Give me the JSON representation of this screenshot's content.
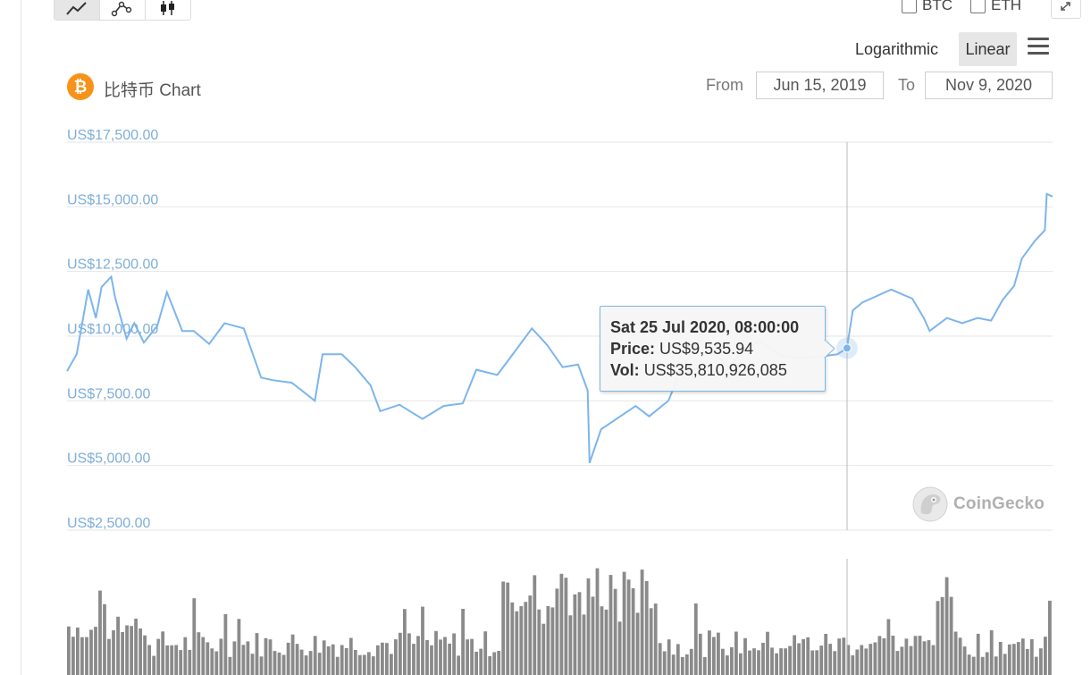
{
  "toolbar": {
    "chart_types": [
      {
        "name": "line",
        "icon": "line-chart-icon",
        "active": true
      },
      {
        "name": "ohlc-line",
        "icon": "connected-points-icon",
        "active": false
      },
      {
        "name": "candlestick",
        "icon": "candlestick-icon",
        "active": false
      }
    ],
    "compare": [
      {
        "label": "BTC",
        "checked": false
      },
      {
        "label": "ETH",
        "checked": false
      }
    ],
    "scale_options": [
      "Logarithmic",
      "Linear"
    ],
    "active_scale": "Linear"
  },
  "header": {
    "coin_symbol": "₿",
    "title": "比特币 Chart",
    "from_label": "From",
    "from_value": "Jun 15, 2019",
    "to_label": "To",
    "to_value": "Nov 9, 2020"
  },
  "tooltip": {
    "date": "Sat 25 Jul 2020, 08:00:00",
    "price_label": "Price:",
    "price_value": "US$9,535.94",
    "vol_label": "Vol:",
    "vol_value": "US$35,810,926,085"
  },
  "watermark": "CoinGecko",
  "colors": {
    "line": "#7cb5ec",
    "axis_text": "#7eaed9",
    "volume": "#8a8a8a",
    "bitcoin": "#f7931a"
  },
  "chart_data": {
    "type": "line",
    "title": "比特币 Chart",
    "x_range": [
      "2019-06-15",
      "2020-11-09"
    ],
    "y_ticks": [
      "US$2,500.00",
      "US$5,000.00",
      "US$7,500.00",
      "US$10,000.00",
      "US$12,500.00",
      "US$15,000.00",
      "US$17,500.00"
    ],
    "y_tick_values": [
      2500,
      5000,
      7500,
      10000,
      12500,
      15000,
      17500
    ],
    "ylim": [
      2500,
      17500
    ],
    "grid": true,
    "series": [
      {
        "kind": "price",
        "x": [
          "2019-06-15",
          "2019-06-20",
          "2019-06-26",
          "2019-06-30",
          "2019-07-03",
          "2019-07-08",
          "2019-07-10",
          "2019-07-16",
          "2019-07-20",
          "2019-07-25",
          "2019-08-01",
          "2019-08-06",
          "2019-08-14",
          "2019-08-20",
          "2019-08-28",
          "2019-09-05",
          "2019-09-15",
          "2019-09-24",
          "2019-09-30",
          "2019-10-10",
          "2019-10-22",
          "2019-10-26",
          "2019-11-05",
          "2019-11-12",
          "2019-11-20",
          "2019-11-25",
          "2019-12-05",
          "2019-12-17",
          "2019-12-28",
          "2020-01-07",
          "2020-01-14",
          "2020-01-25",
          "2020-02-03",
          "2020-02-12",
          "2020-02-20",
          "2020-02-28",
          "2020-03-07",
          "2020-03-12",
          "2020-03-13",
          "2020-03-19",
          "2020-03-27",
          "2020-04-06",
          "2020-04-13",
          "2020-04-23",
          "2020-04-30",
          "2020-05-09",
          "2020-05-15",
          "2020-05-25",
          "2020-06-01",
          "2020-06-10",
          "2020-06-20",
          "2020-06-30",
          "2020-07-10",
          "2020-07-20",
          "2020-07-25",
          "2020-07-28",
          "2020-08-02",
          "2020-08-17",
          "2020-08-28",
          "2020-09-03",
          "2020-09-06",
          "2020-09-15",
          "2020-09-23",
          "2020-10-01",
          "2020-10-08",
          "2020-10-14",
          "2020-10-20",
          "2020-10-24",
          "2020-10-31",
          "2020-11-05",
          "2020-11-06",
          "2020-11-09"
        ],
        "values": [
          8650,
          9300,
          11800,
          10700,
          11900,
          12300,
          11500,
          9900,
          10500,
          9750,
          10400,
          11700,
          10200,
          10200,
          9700,
          10500,
          10300,
          8400,
          8300,
          8200,
          7500,
          9300,
          9300,
          8800,
          8100,
          7100,
          7350,
          6800,
          7300,
          7400,
          8700,
          8500,
          9400,
          10300,
          9650,
          8800,
          8900,
          7900,
          5100,
          6400,
          6800,
          7300,
          6900,
          7500,
          8750,
          9800,
          9400,
          8800,
          9500,
          9800,
          9250,
          9150,
          9200,
          9300,
          9535.94,
          11000,
          11300,
          11800,
          11450,
          10700,
          10200,
          10700,
          10500,
          10700,
          10600,
          11400,
          11950,
          13000,
          13700,
          14100,
          15500,
          15400
        ]
      }
    ],
    "volume_present": true
  }
}
